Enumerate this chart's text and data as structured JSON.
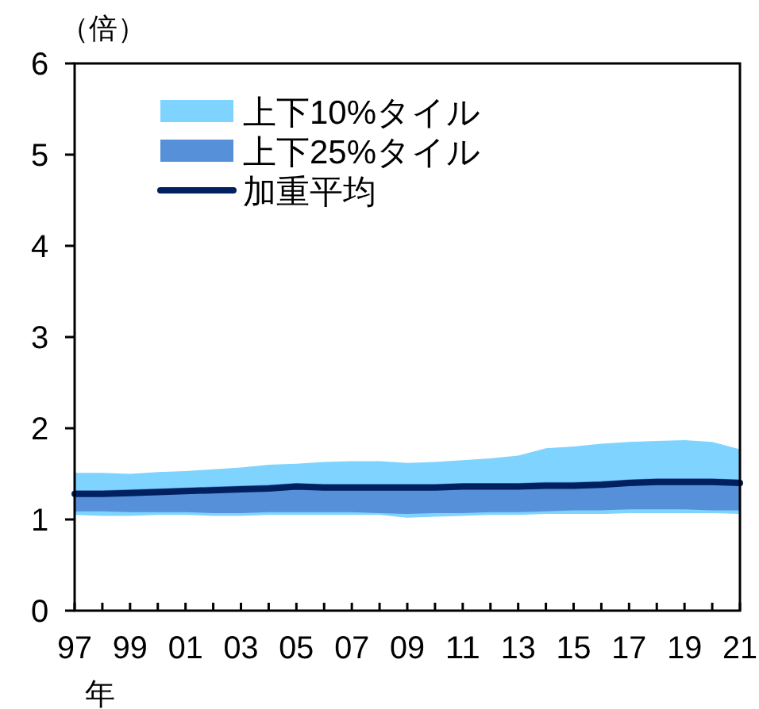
{
  "chart_data": {
    "type": "line",
    "ylabel": "（倍）",
    "xlabel": "年",
    "legend": "top left",
    "grid": false,
    "categories": [
      "97",
      null,
      "99",
      null,
      "01",
      null,
      "03",
      null,
      "05",
      null,
      "07",
      null,
      "09",
      null,
      "11",
      null,
      "13",
      null,
      "15",
      null,
      "17",
      null,
      "19",
      null,
      "21"
    ],
    "ylim": [
      0,
      6
    ],
    "yticks": [
      0,
      1,
      2,
      3,
      4,
      5,
      6
    ],
    "series": [
      {
        "name": "上下10%タイル",
        "color": "#7fd3ff",
        "values": [
          null,
          null,
          null,
          null,
          null,
          null,
          null,
          null,
          null,
          null,
          null,
          null,
          null,
          null,
          null,
          null,
          null,
          null,
          null,
          null,
          null,
          null,
          null,
          null,
          null
        ],
        "lower": [
          1.05,
          1.04,
          1.04,
          1.05,
          1.05,
          1.04,
          1.04,
          1.05,
          1.05,
          1.05,
          1.05,
          1.05,
          1.02,
          1.03,
          1.04,
          1.05,
          1.05,
          1.06,
          1.06,
          1.06,
          1.07,
          1.07,
          1.07,
          1.07,
          1.06
        ],
        "upper": [
          1.51,
          1.51,
          1.5,
          1.52,
          1.53,
          1.55,
          1.57,
          1.6,
          1.61,
          1.63,
          1.64,
          1.64,
          1.62,
          1.63,
          1.65,
          1.67,
          1.7,
          1.78,
          1.8,
          1.83,
          1.85,
          1.86,
          1.87,
          1.85,
          1.77
        ]
      },
      {
        "name": "上下25%タイル",
        "color": "#5590d9",
        "values": [
          null,
          null,
          null,
          null,
          null,
          null,
          null,
          null,
          null,
          null,
          null,
          null,
          null,
          null,
          null,
          null,
          null,
          null,
          null,
          null,
          null,
          null,
          null,
          null,
          null
        ],
        "lower": [
          1.09,
          1.09,
          1.08,
          1.08,
          1.08,
          1.07,
          1.07,
          1.08,
          1.08,
          1.08,
          1.08,
          1.07,
          1.06,
          1.07,
          1.07,
          1.08,
          1.08,
          1.09,
          1.1,
          1.1,
          1.11,
          1.11,
          1.11,
          1.1,
          1.1
        ],
        "upper": [
          1.32,
          1.32,
          1.33,
          1.34,
          1.35,
          1.36,
          1.37,
          1.38,
          1.4,
          1.39,
          1.39,
          1.39,
          1.39,
          1.39,
          1.4,
          1.4,
          1.4,
          1.41,
          1.41,
          1.42,
          1.44,
          1.45,
          1.45,
          1.45,
          1.44
        ]
      },
      {
        "name": "加重平均",
        "color": "#002060",
        "values": [
          1.28,
          1.28,
          1.29,
          1.3,
          1.31,
          1.32,
          1.33,
          1.34,
          1.36,
          1.35,
          1.35,
          1.35,
          1.35,
          1.35,
          1.36,
          1.36,
          1.36,
          1.37,
          1.37,
          1.38,
          1.4,
          1.41,
          1.41,
          1.41,
          1.4
        ]
      }
    ]
  }
}
